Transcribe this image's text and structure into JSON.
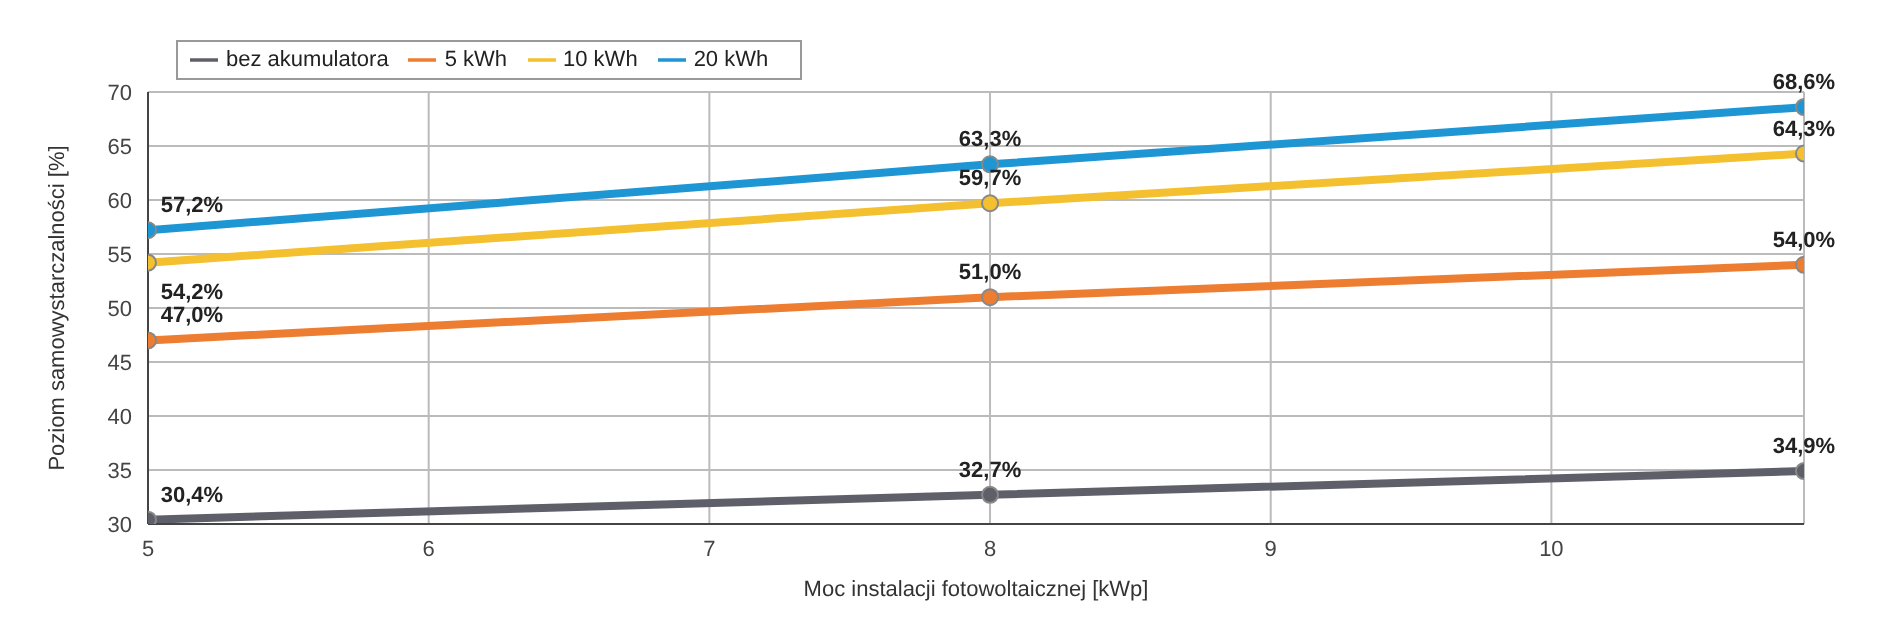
{
  "chart_data": {
    "type": "line",
    "xlabel": "Moc instalacji fotowoltaicznej [kWp]",
    "ylabel": "Poziom samowystarczalności [%]",
    "x": [
      5,
      8,
      10.9
    ],
    "xlim": [
      5,
      10.9
    ],
    "xticks": [
      5,
      6,
      7,
      8,
      9,
      10
    ],
    "ylim": [
      30,
      70
    ],
    "yticks": [
      30,
      35,
      40,
      45,
      50,
      55,
      60,
      65,
      70
    ],
    "grid": true,
    "legend": "top left",
    "marker": "circle",
    "line_style": "solid",
    "series": [
      {
        "name": "bez akumulatora",
        "color": "#5f5f6a",
        "values": [
          30.4,
          32.7,
          34.9
        ],
        "value_labels": [
          "30,4%",
          "32,7%",
          "34,9%"
        ]
      },
      {
        "name": "5 kWh",
        "color": "#ed7d31",
        "values": [
          47.0,
          51.0,
          54.0
        ],
        "value_labels": [
          "47,0%",
          "51,0%",
          "54,0%"
        ]
      },
      {
        "name": "10 kWh",
        "color": "#f4c030",
        "values": [
          54.2,
          59.7,
          64.3
        ],
        "value_labels": [
          "54,2%",
          "59,7%",
          "64,3%"
        ]
      },
      {
        "name": "20 kWh",
        "color": "#1e96d4",
        "values": [
          57.2,
          63.3,
          68.6
        ],
        "value_labels": [
          "57,2%",
          "63,3%",
          "68,6%"
        ]
      }
    ]
  }
}
